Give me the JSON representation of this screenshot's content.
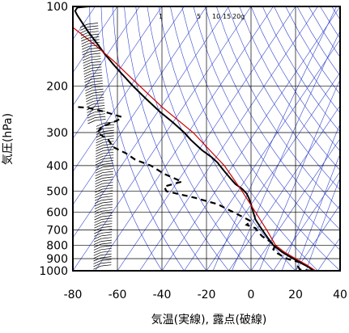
{
  "chart_data": {
    "type": "line",
    "title": "",
    "xlabel": "気温(実線), 露点(破線)",
    "ylabel": "気圧(hPa)",
    "xlim": [
      -80,
      40
    ],
    "ylim": [
      1000,
      100
    ],
    "y_scale": "log",
    "grid": true,
    "x_ticks": [
      -80,
      -60,
      -40,
      -20,
      0,
      20,
      40
    ],
    "x_tick_labels": [
      "-80",
      "-60",
      "-40",
      "-20",
      "0",
      "20",
      "40"
    ],
    "y_ticks": [
      100,
      200,
      300,
      400,
      500,
      600,
      700,
      800,
      900,
      1000
    ],
    "y_tick_labels": [
      "100",
      "200",
      "300",
      "400",
      "500",
      "600",
      "700",
      "800",
      "900",
      "1000"
    ],
    "mixing_ratio_labels": [
      "1",
      "5",
      "10",
      "15",
      "20g"
    ],
    "colors": {
      "temperature": "#000000",
      "dewpoint": "#000000",
      "reference_profile": "#cc0000",
      "guide_lines": "#3344cc",
      "wind_barbs": "#000000"
    },
    "series": [
      {
        "name": "気温",
        "style": "solid",
        "points": [
          {
            "t": 28,
            "p": 1000
          },
          {
            "t": 26,
            "p": 970
          },
          {
            "t": 23,
            "p": 940
          },
          {
            "t": 20,
            "p": 910
          },
          {
            "t": 17,
            "p": 880
          },
          {
            "t": 14,
            "p": 850
          },
          {
            "t": 10,
            "p": 800
          },
          {
            "t": 8,
            "p": 760
          },
          {
            "t": 6,
            "p": 720
          },
          {
            "t": 4,
            "p": 680
          },
          {
            "t": 2,
            "p": 640
          },
          {
            "t": 1,
            "p": 600
          },
          {
            "t": 0,
            "p": 560
          },
          {
            "t": -1,
            "p": 530
          },
          {
            "t": -2,
            "p": 510
          },
          {
            "t": -4,
            "p": 490
          },
          {
            "t": -7,
            "p": 470
          },
          {
            "t": -9,
            "p": 450
          },
          {
            "t": -12,
            "p": 420
          },
          {
            "t": -14,
            "p": 400
          },
          {
            "t": -15,
            "p": 390
          },
          {
            "t": -18,
            "p": 370
          },
          {
            "t": -22,
            "p": 350
          },
          {
            "t": -27,
            "p": 320
          },
          {
            "t": -30,
            "p": 300
          },
          {
            "t": -35,
            "p": 275
          },
          {
            "t": -41,
            "p": 250
          },
          {
            "t": -48,
            "p": 220
          },
          {
            "t": -53,
            "p": 200
          },
          {
            "t": -58,
            "p": 180
          },
          {
            "t": -62,
            "p": 165
          },
          {
            "t": -66,
            "p": 150
          },
          {
            "t": -70,
            "p": 135
          },
          {
            "t": -73,
            "p": 125
          },
          {
            "t": -75,
            "p": 118
          },
          {
            "t": -78,
            "p": 108
          },
          {
            "t": -79,
            "p": 104
          },
          {
            "t": -78,
            "p": 101
          },
          {
            "t": -73,
            "p": 100
          }
        ]
      },
      {
        "name": "露点",
        "style": "dashed",
        "points": [
          {
            "t": 27,
            "p": 1000
          },
          {
            "t": 22,
            "p": 990
          },
          {
            "t": 21,
            "p": 960
          },
          {
            "t": 22,
            "p": 930
          },
          {
            "t": 16,
            "p": 900
          },
          {
            "t": 12,
            "p": 860
          },
          {
            "t": 10,
            "p": 830
          },
          {
            "t": 11,
            "p": 800
          },
          {
            "t": 8,
            "p": 770
          },
          {
            "t": 5,
            "p": 740
          },
          {
            "t": 3,
            "p": 710
          },
          {
            "t": 2,
            "p": 690
          },
          {
            "t": -2,
            "p": 670
          },
          {
            "t": 0,
            "p": 650
          },
          {
            "t": -3,
            "p": 630
          },
          {
            "t": -8,
            "p": 600
          },
          {
            "t": -15,
            "p": 560
          },
          {
            "t": -25,
            "p": 530
          },
          {
            "t": -38,
            "p": 500
          },
          {
            "t": -39,
            "p": 480
          },
          {
            "t": -31,
            "p": 460
          },
          {
            "t": -39,
            "p": 430
          },
          {
            "t": -45,
            "p": 400
          },
          {
            "t": -52,
            "p": 380
          },
          {
            "t": -56,
            "p": 360
          },
          {
            "t": -62,
            "p": 340
          },
          {
            "t": -64,
            "p": 320
          },
          {
            "t": -69,
            "p": 300
          },
          {
            "t": -67,
            "p": 285
          },
          {
            "t": -60,
            "p": 270
          },
          {
            "t": -58,
            "p": 262
          },
          {
            "t": -66,
            "p": 250
          },
          {
            "t": -73,
            "p": 242
          },
          {
            "t": -78,
            "p": 240
          }
        ]
      },
      {
        "name": "",
        "style": "solid-red",
        "points": [
          {
            "t": 29,
            "p": 1000
          },
          {
            "t": 25,
            "p": 950
          },
          {
            "t": 20,
            "p": 900
          },
          {
            "t": 15,
            "p": 850
          },
          {
            "t": 11,
            "p": 800
          },
          {
            "t": 7,
            "p": 700
          },
          {
            "t": 2,
            "p": 600
          },
          {
            "t": -4,
            "p": 500
          },
          {
            "t": -12,
            "p": 400
          },
          {
            "t": -26,
            "p": 300
          },
          {
            "t": -40,
            "p": 240
          },
          {
            "t": -50,
            "p": 200
          },
          {
            "t": -62,
            "p": 160
          },
          {
            "t": -70,
            "p": 140
          },
          {
            "t": -80,
            "p": 120
          }
        ]
      }
    ]
  }
}
